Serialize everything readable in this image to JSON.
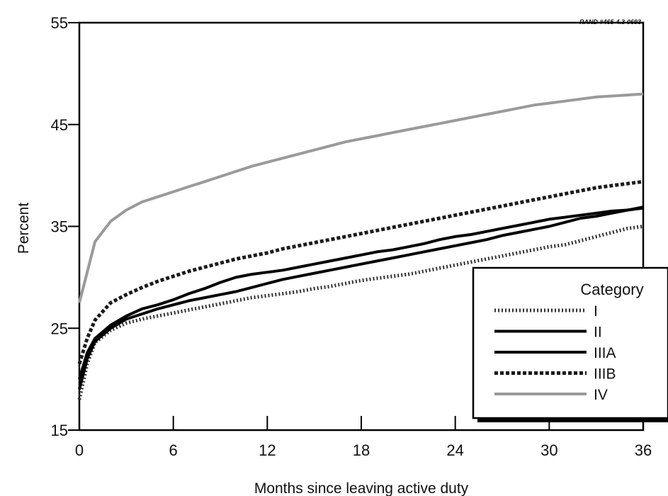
{
  "source_label": "RAND #465-4.3-0693",
  "chart_data": {
    "type": "line",
    "title": "",
    "xlabel": "Months since leaving active duty",
    "ylabel": "Percent",
    "xlim": [
      0,
      36
    ],
    "ylim": [
      15,
      55
    ],
    "x_ticks": [
      "0",
      "6",
      "12",
      "18",
      "24",
      "30",
      "36"
    ],
    "y_ticks": [
      "15",
      "25",
      "35",
      "45",
      "55"
    ],
    "grid": false,
    "legend": {
      "title": "Category",
      "position": "bottom-right"
    },
    "x": [
      0,
      0.5,
      1,
      2,
      3,
      4,
      5,
      6,
      7,
      8,
      9,
      10,
      11,
      12,
      13,
      14,
      15,
      16,
      17,
      18,
      19,
      20,
      21,
      22,
      23,
      24,
      25,
      26,
      27,
      28,
      29,
      30,
      31,
      32,
      33,
      34,
      35,
      36
    ],
    "series": [
      {
        "name": "I",
        "style": "dotted",
        "color": "#333333",
        "values": [
          18.0,
          21.5,
          23.6,
          24.8,
          25.5,
          25.9,
          26.2,
          26.5,
          26.8,
          27.1,
          27.4,
          27.7,
          28.0,
          28.2,
          28.4,
          28.6,
          28.9,
          29.1,
          29.4,
          29.7,
          29.9,
          30.1,
          30.3,
          30.6,
          30.9,
          31.2,
          31.5,
          31.8,
          32.1,
          32.4,
          32.7,
          33.0,
          33.2,
          33.6,
          34.0,
          34.4,
          34.8,
          35.0
        ]
      },
      {
        "name": "II",
        "style": "solid",
        "color": "#000000",
        "values": [
          19.0,
          22.0,
          23.7,
          25.0,
          25.9,
          26.4,
          26.9,
          27.3,
          27.7,
          28.0,
          28.3,
          28.6,
          29.0,
          29.4,
          29.8,
          30.1,
          30.4,
          30.7,
          31.0,
          31.3,
          31.6,
          31.9,
          32.2,
          32.5,
          32.8,
          33.1,
          33.4,
          33.7,
          34.1,
          34.4,
          34.7,
          35.0,
          35.4,
          35.8,
          36.0,
          36.3,
          36.6,
          36.9
        ]
      },
      {
        "name": "IIIA",
        "style": "solid",
        "color": "#000000",
        "values": [
          20.0,
          22.6,
          24.0,
          25.3,
          26.2,
          26.9,
          27.3,
          27.8,
          28.4,
          28.9,
          29.5,
          30.0,
          30.3,
          30.5,
          30.7,
          31.0,
          31.3,
          31.6,
          31.9,
          32.2,
          32.5,
          32.7,
          33.0,
          33.3,
          33.7,
          34.0,
          34.2,
          34.5,
          34.8,
          35.1,
          35.4,
          35.7,
          35.9,
          36.1,
          36.3,
          36.5,
          36.6,
          36.8
        ]
      },
      {
        "name": "IIIB",
        "style": "dashed",
        "color": "#1a1a1a",
        "values": [
          21.5,
          24.0,
          25.8,
          27.5,
          28.3,
          29.0,
          29.6,
          30.1,
          30.6,
          31.0,
          31.4,
          31.8,
          32.1,
          32.4,
          32.8,
          33.1,
          33.4,
          33.7,
          34.0,
          34.3,
          34.6,
          34.9,
          35.2,
          35.5,
          35.8,
          36.1,
          36.4,
          36.7,
          37.0,
          37.3,
          37.6,
          37.9,
          38.2,
          38.5,
          38.8,
          39.0,
          39.2,
          39.4
        ]
      },
      {
        "name": "IV",
        "style": "solid",
        "color": "#9a9a9a",
        "values": [
          27.5,
          30.5,
          33.5,
          35.5,
          36.6,
          37.4,
          37.9,
          38.4,
          38.9,
          39.4,
          39.9,
          40.4,
          40.9,
          41.3,
          41.7,
          42.1,
          42.5,
          42.9,
          43.3,
          43.6,
          43.9,
          44.2,
          44.5,
          44.8,
          45.1,
          45.4,
          45.7,
          46.0,
          46.3,
          46.6,
          46.9,
          47.1,
          47.3,
          47.5,
          47.7,
          47.8,
          47.9,
          48.0
        ]
      }
    ]
  }
}
